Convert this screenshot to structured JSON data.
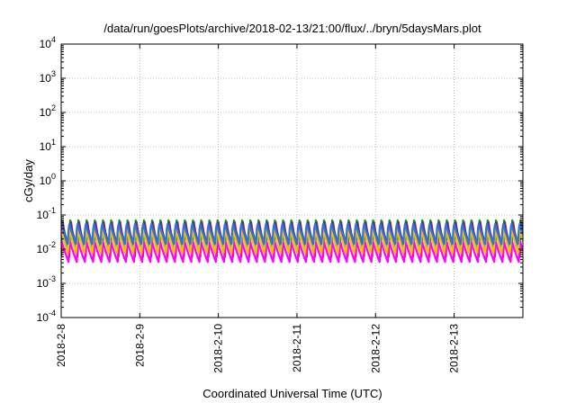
{
  "chart_data": {
    "type": "line",
    "title": "/data/run/goesPlots/archive/2018-02-13/21:00/flux/../bryn/5daysMars.plot",
    "xlabel": "Coordinated Universal Time (UTC)",
    "ylabel": "cGy/day",
    "y_scale": "log",
    "ylim": [
      0.0001,
      10000
    ],
    "y_ticks": [
      {
        "base": "10",
        "exp": "-4",
        "value": 0.0001
      },
      {
        "base": "10",
        "exp": "-3",
        "value": 0.001
      },
      {
        "base": "10",
        "exp": "-2",
        "value": 0.01
      },
      {
        "base": "10",
        "exp": "-1",
        "value": 0.1
      },
      {
        "base": "10",
        "exp": "0",
        "value": 1
      },
      {
        "base": "10",
        "exp": "1",
        "value": 10
      },
      {
        "base": "10",
        "exp": "2",
        "value": 100
      },
      {
        "base": "10",
        "exp": "3",
        "value": 1000
      },
      {
        "base": "10",
        "exp": "4",
        "value": 10000
      }
    ],
    "x_ticks": [
      "2018-2-8",
      "2018-2-9",
      "2018-2-10",
      "2018-2-11",
      "2018-2-12",
      "2018-2-13"
    ],
    "xlim": [
      "2018-02-08 00:00",
      "2018-02-13 21:00"
    ],
    "x_tick_label_orientation": "vertical",
    "grid": true,
    "grid_style": "dotted",
    "legend": "none",
    "pattern": {
      "period_hours": 2.5,
      "description": "sawtooth oscillation in every series: sharp rise to peak, slower decay",
      "start": "2018-02-08 00:00",
      "end": "2018-02-13 21:00"
    },
    "series": [
      {
        "color": "#ff0000",
        "peak": 0.095,
        "trough": 0.006
      },
      {
        "color": "#00aa00",
        "peak": 0.075,
        "trough": 0.008
      },
      {
        "color": "#1f3fbf",
        "peak": 0.07,
        "trough": 0.012
      },
      {
        "color": "#ff00ff",
        "peak": 0.02,
        "trough": 0.0042
      },
      {
        "color": "#00cccc",
        "peak": 0.035,
        "trough": 0.009
      },
      {
        "color": "#ffbb00",
        "peak": 0.05,
        "trough": 0.007
      },
      {
        "color": "#3a6fd8",
        "peak": 0.065,
        "trough": 0.014
      }
    ]
  }
}
